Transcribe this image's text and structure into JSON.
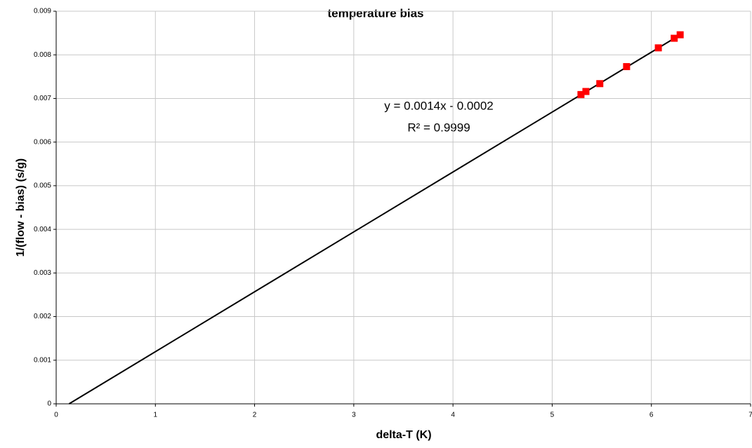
{
  "chart_data": {
    "type": "scatter",
    "title": "temperature bias",
    "xlabel": "delta-T (K)",
    "ylabel": "1/(flow - bias) (s/g)",
    "series": [
      {
        "color": "#ff0000",
        "x": [
          5.29,
          5.34,
          5.48,
          5.75,
          6.07,
          6.23,
          6.29
        ],
        "values": [
          0.00709,
          0.00716,
          0.00734,
          0.00773,
          0.00816,
          0.00838,
          0.00846
        ]
      }
    ],
    "trendline": {
      "color": "#000000",
      "x": [
        0.13,
        6.29
      ],
      "values": [
        0,
        0.00846
      ]
    },
    "annotations": [
      "y = 0.0014x - 0.0002",
      "R² = 0.9999"
    ],
    "xlim": [
      0,
      7
    ],
    "xticks": [
      0,
      1,
      2,
      3,
      4,
      5,
      6,
      7
    ],
    "ylim": [
      0,
      0.009
    ],
    "yticks": [
      0,
      0.001,
      0.002,
      0.003,
      0.004,
      0.005,
      0.006,
      0.007,
      0.008,
      0.009
    ],
    "grid": true
  }
}
